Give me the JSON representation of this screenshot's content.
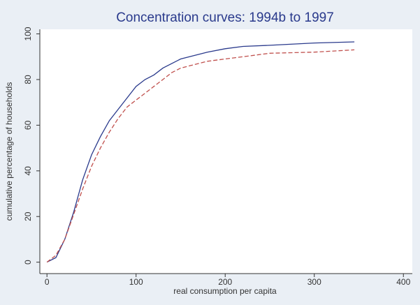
{
  "chart_data": {
    "type": "line",
    "title": "Concentration curves: 1994b to 1997",
    "xlabel": "real consumption per capita",
    "ylabel": "cumulative percentage of households",
    "x": [
      0,
      10,
      20,
      30,
      40,
      50,
      60,
      70,
      80,
      90,
      100,
      110,
      120,
      130,
      140,
      150,
      160,
      180,
      200,
      220,
      250,
      300,
      345
    ],
    "series": [
      {
        "color": "#2a3a8c",
        "dash": false,
        "values": [
          0,
          2,
          10,
          22,
          36,
          47,
          55,
          62,
          67,
          72,
          77,
          80,
          82,
          85,
          87,
          89,
          90,
          92,
          93.5,
          94.5,
          95,
          96,
          96.5
        ]
      },
      {
        "color": "#c0504d",
        "dash": true,
        "values": [
          0,
          3,
          10,
          21,
          32,
          42,
          50,
          57,
          63,
          68,
          71,
          74,
          77,
          80,
          83,
          85,
          86,
          88,
          89,
          90,
          91.5,
          92,
          93
        ]
      }
    ],
    "xlim": [
      -8,
      410
    ],
    "xticks": [
      0,
      100,
      200,
      300,
      400
    ],
    "ylim": [
      -5,
      102
    ],
    "yticks": [
      0,
      20,
      40,
      60,
      80,
      100
    ],
    "grid": false
  }
}
